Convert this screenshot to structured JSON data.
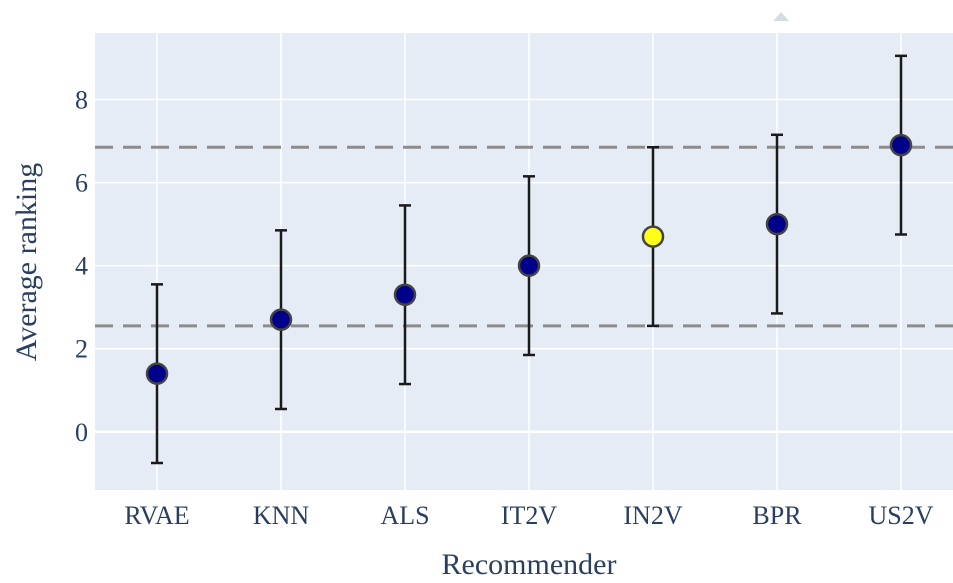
{
  "chart_data": {
    "type": "scatter",
    "title": "",
    "xlabel": "Recommender",
    "ylabel": "Average ranking",
    "categories": [
      "RVAE",
      "KNN",
      "ALS",
      "IT2V",
      "IN2V",
      "BPR",
      "US2V"
    ],
    "values": [
      1.4,
      2.7,
      3.3,
      4.0,
      4.7,
      5.0,
      6.9
    ],
    "error": [
      2.15,
      2.15,
      2.15,
      2.15,
      2.15,
      2.15,
      2.15
    ],
    "highlight_index": 4,
    "reference_lines": [
      2.55,
      6.85
    ],
    "ylim": [
      -1.4,
      9.6
    ],
    "yticks": [
      0,
      2,
      4,
      6,
      8
    ],
    "grid": true,
    "legend": "none",
    "colors": {
      "plot_background": "#e5ecf6",
      "grid": "#ffffff",
      "marker": "#00008b",
      "marker_highlight": "#ffff1a",
      "marker_outline": "#444444",
      "error_bar": "#1a1a1a",
      "reference_line": "#8c8c8c",
      "text": "#2a3f5f"
    }
  }
}
